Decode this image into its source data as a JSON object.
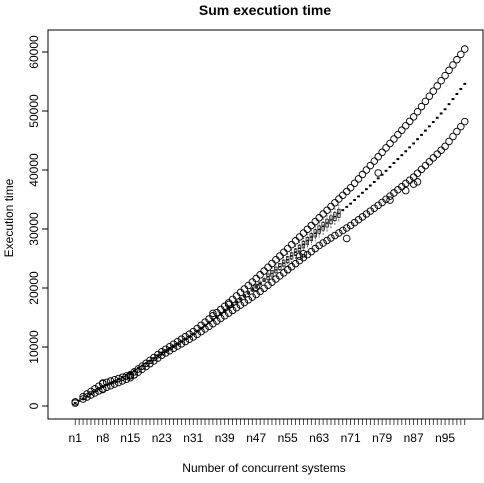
{
  "chart_data": {
    "type": "boxplot",
    "title": "Sum execution time",
    "xlabel": "Number of concurrent systems",
    "ylabel": "Execution time",
    "categories_count": 100,
    "category_prefix": "n",
    "x_tick_labels": [
      "n1",
      "n8",
      "n15",
      "n23",
      "n31",
      "n39",
      "n47",
      "n55",
      "n63",
      "n71",
      "n79",
      "n87",
      "n95"
    ],
    "ylim": [
      0,
      62000
    ],
    "y_ticks": [
      0,
      10000,
      20000,
      30000,
      40000,
      50000,
      60000
    ],
    "y_tick_labels": [
      "0",
      "10000",
      "20000",
      "30000",
      "40000",
      "50000",
      "60000"
    ],
    "grid": false,
    "legend": "none",
    "summary_at_categories": {
      "n": [
        1,
        8,
        15,
        23,
        31,
        39,
        47,
        55,
        63,
        71,
        79,
        87,
        95,
        100
      ],
      "median": [
        500,
        3200,
        5600,
        8900,
        12200,
        16100,
        20200,
        24800,
        29900,
        34300,
        39200,
        44500,
        50300,
        54600
      ],
      "upper_outliers": [
        700,
        3800,
        5300,
        9200,
        12600,
        16900,
        21600,
        26700,
        31900,
        37000,
        43000,
        49000,
        56000,
        60500
      ],
      "lower_outliers": [
        500,
        2900,
        4800,
        8600,
        11700,
        15300,
        18900,
        23100,
        27200,
        30600,
        34500,
        38800,
        44000,
        48200
      ]
    },
    "extra_outliers": [
      {
        "n": 36,
        "value": 15700
      },
      {
        "n": 40,
        "value": 17200
      },
      {
        "n": 47,
        "value": 20100
      },
      {
        "n": 55,
        "value": 23100
      },
      {
        "n": 58,
        "value": 25400
      },
      {
        "n": 59,
        "value": 25800
      },
      {
        "n": 70,
        "value": 28400
      },
      {
        "n": 78,
        "value": 39500
      },
      {
        "n": 81,
        "value": 34900
      },
      {
        "n": 85,
        "value": 36500
      },
      {
        "n": 87,
        "value": 37600
      },
      {
        "n": 88,
        "value": 38000
      }
    ]
  }
}
